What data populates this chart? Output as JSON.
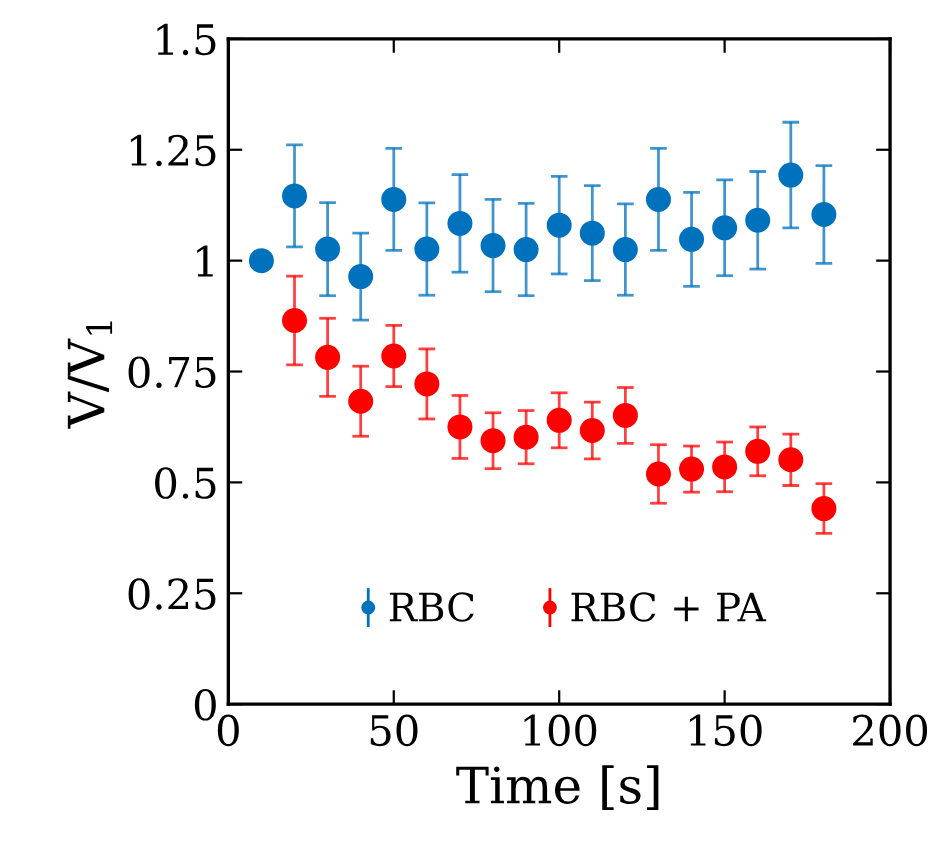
{
  "chart_data": {
    "type": "scatter",
    "xlabel": "Time [s]",
    "ylabel": "V/V$_{1}$",
    "xlim": [
      0,
      200
    ],
    "xticks": [
      0,
      50,
      100,
      150,
      200
    ],
    "ylim": [
      0,
      1.5
    ],
    "yticks": [
      0,
      0.25,
      0.5,
      0.75,
      1,
      1.25,
      1.5
    ],
    "marker": "circle",
    "legend": "bottom",
    "grid": false,
    "series": [
      {
        "name": "RBC",
        "color": "#0072bd",
        "x": [
          10,
          20,
          30,
          40,
          50,
          60,
          70,
          80,
          90,
          100,
          110,
          120,
          130,
          140,
          150,
          160,
          170,
          180
        ],
        "values": [
          1.0,
          1.146,
          1.026,
          0.964,
          1.138,
          1.026,
          1.084,
          1.034,
          1.025,
          1.08,
          1.062,
          1.025,
          1.138,
          1.048,
          1.074,
          1.091,
          1.193,
          1.104
        ],
        "errors": [
          null,
          0.115,
          0.105,
          0.098,
          0.115,
          0.104,
          0.11,
          0.104,
          0.104,
          0.11,
          0.107,
          0.103,
          0.115,
          0.106,
          0.108,
          0.11,
          0.119,
          0.11
        ]
      },
      {
        "name": "RBC + PA",
        "color": "#ff0000",
        "x": [
          20,
          30,
          40,
          50,
          60,
          70,
          80,
          90,
          100,
          110,
          120,
          130,
          140,
          150,
          160,
          170,
          180
        ],
        "values": [
          0.865,
          0.782,
          0.683,
          0.785,
          0.722,
          0.625,
          0.594,
          0.602,
          0.64,
          0.617,
          0.651,
          0.519,
          0.53,
          0.535,
          0.57,
          0.551,
          0.441
        ],
        "errors": [
          0.1,
          0.088,
          0.079,
          0.069,
          0.079,
          0.071,
          0.063,
          0.06,
          0.062,
          0.064,
          0.063,
          0.066,
          0.052,
          0.056,
          0.055,
          0.058,
          0.056
        ]
      }
    ]
  }
}
